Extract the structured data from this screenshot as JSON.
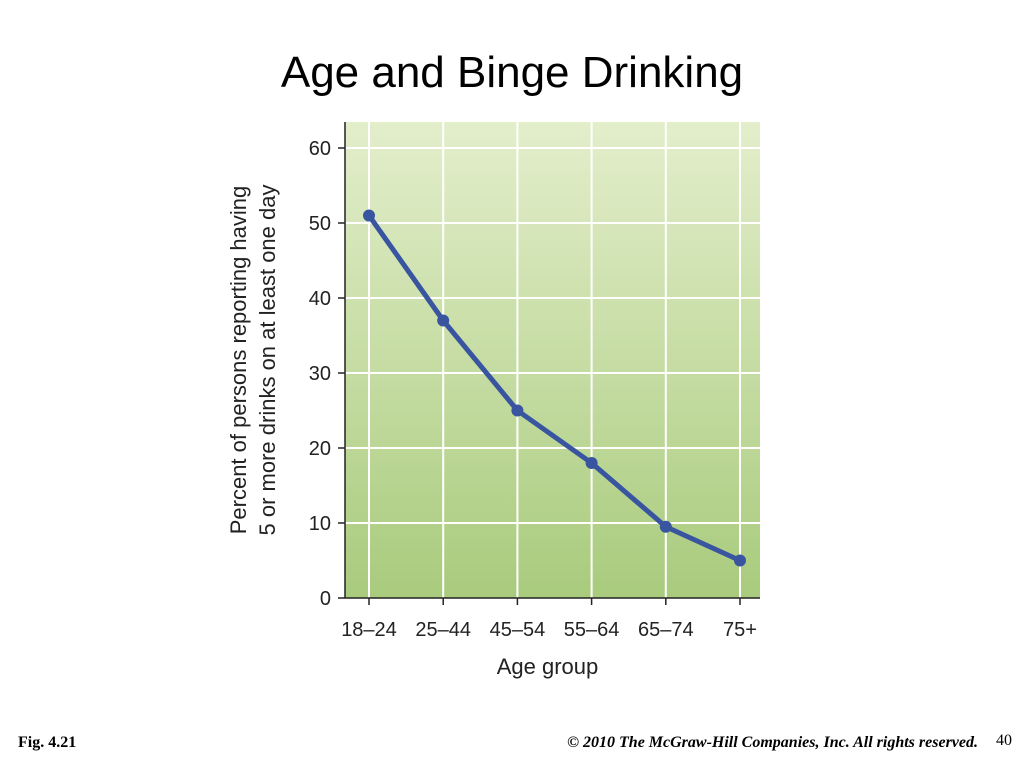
{
  "slide": {
    "title": "Age and Binge Drinking",
    "fig_label": "Fig. 4.21",
    "copyright": "© 2010 The McGraw-Hill Companies, Inc. All rights reserved.",
    "page_number": "40"
  },
  "chart_data": {
    "type": "line",
    "title": "",
    "xlabel": "Age group",
    "ylabel_lines": [
      "Percent of persons reporting having",
      "5 or more drinks on at least one day"
    ],
    "categories": [
      "18–24",
      "25–44",
      "45–54",
      "55–64",
      "65–74",
      "75+"
    ],
    "series": [
      {
        "values": [
          51,
          37,
          25,
          18,
          9.5,
          5
        ]
      }
    ],
    "ylim": [
      0,
      60
    ],
    "yticks": [
      0,
      10,
      20,
      30,
      40,
      50,
      60
    ],
    "grid": true,
    "colors": {
      "line": "#3a55a0",
      "plot_bg_top": "#e3eecb",
      "plot_bg_bottom": "#a9cb7d",
      "grid": "#ffffff"
    }
  }
}
